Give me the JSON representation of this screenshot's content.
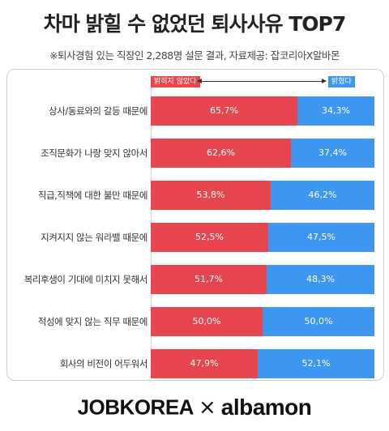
{
  "title": "차마 밝힐 수 없었던 퇴사사유 TOP7",
  "subtitle": "※퇴사경험 있는 직장인 2,288명 설문 결과, 자료제공: 잡코리아X알바몬",
  "logos": {
    "left": "JOBKOREA",
    "separator": "×",
    "right": "albamon"
  },
  "colors": {
    "hidden": "#e8464e",
    "revealed": "#3d96f0"
  },
  "chart_data": {
    "type": "bar",
    "orientation": "horizontal",
    "stacked": true,
    "percent_scale": 100,
    "legend_placement": "top",
    "categories": [
      "상사/동료와의 갈등 때문에",
      "조직문화가 나랑 맞지 않아서",
      "직급,직책에 대한 불만 때문에",
      "지켜지지 않는 워라밸 때문에",
      "복리후생이 기대에 미치지 못해서",
      "적성에 맞지 않는 직무 때문에",
      "회사의 비전이 어두워서"
    ],
    "series": [
      {
        "name": "밝히지 않았다",
        "values": [
          65.7,
          62.6,
          53.8,
          52.5,
          51.7,
          50.0,
          47.9
        ],
        "labels": [
          "65,7%",
          "62,6%",
          "53,8%",
          "52,5%",
          "51,7%",
          "50,0%",
          "47,9%"
        ]
      },
      {
        "name": "밝혔다",
        "values": [
          34.3,
          37.4,
          46.2,
          47.5,
          48.3,
          50.0,
          52.1
        ],
        "labels": [
          "34,3%",
          "37,4%",
          "46,2%",
          "47,5%",
          "48,3%",
          "50,0%",
          "52,1%"
        ]
      }
    ]
  }
}
